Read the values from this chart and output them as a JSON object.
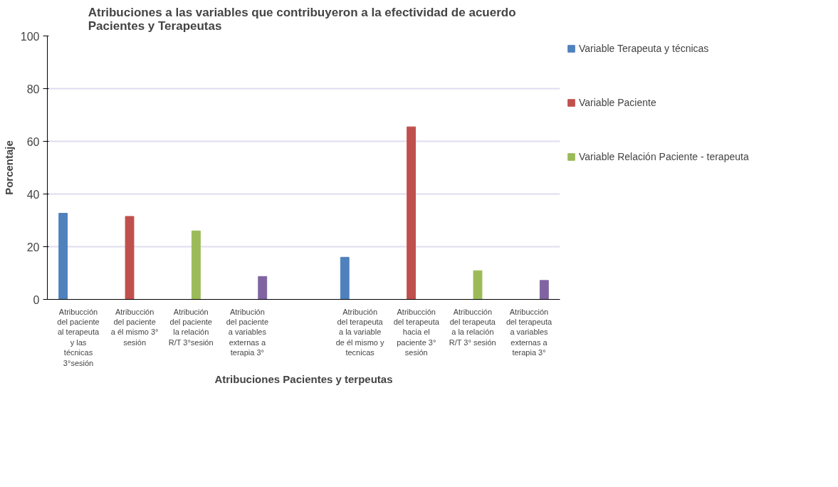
{
  "chart_data": {
    "type": "bar",
    "title": "Atribuciones a las variables que contribuyeron a la efectividad  de acuerdo Pacientes y Terapeutas",
    "xlabel": "Atribuciones Pacientes y terpeutas",
    "ylabel": "Porcentaje",
    "categories": [
      "Atribucción del paciente al terapeuta y las técnicas 3°sesión",
      "Atribucción del paciente a él mismo 3° sesión",
      "Atribución del paciente la relación R/T 3°sesión",
      "Atribución del paciente a variables externas a terapia 3°",
      null,
      "Atribución del terapeuta a la variable de él mismo y tecnicas",
      "Atribucción del terapeuta hacia el paciente 3° sesión",
      "Atribucción del terapeuta a la relación R/T 3° sesión",
      "Atribucción del terapeuta a variables externas a terapia 3°"
    ],
    "series": [
      {
        "name": "Variable Terapeuta y técnicas",
        "color": "#4f81bd",
        "values": [
          32.7,
          null,
          null,
          null,
          null,
          16,
          null,
          null,
          null
        ]
      },
      {
        "name": "Variable Paciente",
        "color": "#c0504d",
        "values": [
          null,
          31.5,
          null,
          null,
          null,
          null,
          65.5,
          null,
          null
        ]
      },
      {
        "name": "Variable Relación Paciente - terapeuta",
        "color": "#9bbb59",
        "values": [
          null,
          null,
          26,
          null,
          null,
          null,
          null,
          10.9,
          null
        ]
      },
      {
        "color": "#8064a2",
        "values": [
          null,
          null,
          null,
          8.7,
          null,
          null,
          null,
          null,
          7.2
        ]
      }
    ],
    "ylim": [
      0,
      100
    ],
    "yticks": [
      0,
      20,
      40,
      60,
      80,
      100
    ],
    "grid": "y",
    "legend": "right"
  }
}
